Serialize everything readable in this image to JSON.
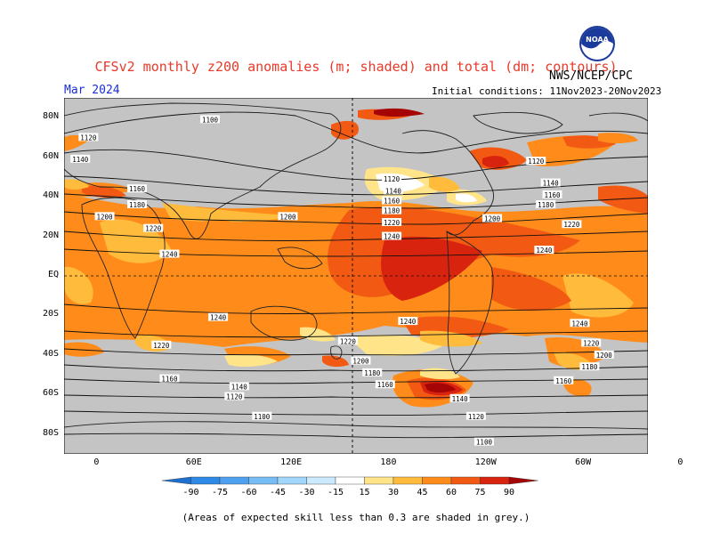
{
  "title": "CFSv2 monthly z200 anomalies (m; shaded) and total (dm; contours)",
  "valid_month": "Mar 2024",
  "initial_conditions": "Initial conditions: 11Nov2023-20Nov2023",
  "org": "NWS/NCEP/CPC",
  "logo_text": "NOAA",
  "footnote": "(Areas of expected skill less than 0.3 are shaded in grey.)",
  "lat_labels": [
    "80N",
    "60N",
    "40N",
    "20N",
    "EQ",
    "20S",
    "40S",
    "60S",
    "80S"
  ],
  "lon_labels": [
    "0",
    "60E",
    "120E",
    "180",
    "120W",
    "60W",
    "0"
  ],
  "colorbar": {
    "ticks": [
      "-90",
      "-75",
      "-60",
      "-45",
      "-30",
      "-15",
      "15",
      "30",
      "45",
      "60",
      "75",
      "90"
    ],
    "colors": [
      "#1e6fd0",
      "#2e8ae6",
      "#4da0f0",
      "#76bdf6",
      "#a2d6fa",
      "#cbeafd",
      "#ffffff",
      "#ffe48a",
      "#ffbb3c",
      "#ff8c1a",
      "#f25a14",
      "#d8240f",
      "#a50505"
    ]
  },
  "contour_labels": [
    {
      "text": "1100",
      "lon": 70,
      "lat": 79
    },
    {
      "text": "1120",
      "lon": -5,
      "lat": 70
    },
    {
      "text": "1140",
      "lon": -10,
      "lat": 59
    },
    {
      "text": "1160",
      "lon": 25,
      "lat": 44
    },
    {
      "text": "1180",
      "lon": 25,
      "lat": 36
    },
    {
      "text": "1200",
      "lon": 5,
      "lat": 30
    },
    {
      "text": "1220",
      "lon": 35,
      "lat": 24
    },
    {
      "text": "1240",
      "lon": 45,
      "lat": 11
    },
    {
      "text": "1200",
      "lon": 118,
      "lat": 30
    },
    {
      "text": "1220",
      "lon": -178,
      "lat": 27
    },
    {
      "text": "1240",
      "lon": -178,
      "lat": 20
    },
    {
      "text": "1120",
      "lon": -178,
      "lat": 49
    },
    {
      "text": "1140",
      "lon": -177,
      "lat": 43
    },
    {
      "text": "1160",
      "lon": -178,
      "lat": 38
    },
    {
      "text": "1180",
      "lon": -178,
      "lat": 33
    },
    {
      "text": "1200",
      "lon": -116,
      "lat": 29
    },
    {
      "text": "1240",
      "lon": -84,
      "lat": 13
    },
    {
      "text": "1220",
      "lon": -67,
      "lat": 26
    },
    {
      "text": "1180",
      "lon": -83,
      "lat": 36
    },
    {
      "text": "1160",
      "lon": -79,
      "lat": 41
    },
    {
      "text": "1140",
      "lon": -80,
      "lat": 47
    },
    {
      "text": "1120",
      "lon": -89,
      "lat": 58
    },
    {
      "text": "1240",
      "lon": 75,
      "lat": -21
    },
    {
      "text": "1240",
      "lon": -168,
      "lat": -23
    },
    {
      "text": "1240",
      "lon": -62,
      "lat": -24
    },
    {
      "text": "1220",
      "lon": 40,
      "lat": -35
    },
    {
      "text": "1220",
      "lon": 155,
      "lat": -33
    },
    {
      "text": "1220",
      "lon": -55,
      "lat": -34
    },
    {
      "text": "1200",
      "lon": 163,
      "lat": -43
    },
    {
      "text": "1200",
      "lon": -47,
      "lat": -40
    },
    {
      "text": "1180",
      "lon": 170,
      "lat": -49
    },
    {
      "text": "1180",
      "lon": -56,
      "lat": -46
    },
    {
      "text": "1160",
      "lon": 45,
      "lat": -52
    },
    {
      "text": "1160",
      "lon": 178,
      "lat": -55
    },
    {
      "text": "1160",
      "lon": -72,
      "lat": -53
    },
    {
      "text": "1140",
      "lon": 88,
      "lat": -56
    },
    {
      "text": "1140",
      "lon": -136,
      "lat": -62
    },
    {
      "text": "1120",
      "lon": 85,
      "lat": -61
    },
    {
      "text": "1120",
      "lon": -126,
      "lat": -71
    },
    {
      "text": "1100",
      "lon": 102,
      "lat": -71
    },
    {
      "text": "1100",
      "lon": -121,
      "lat": -84
    }
  ]
}
